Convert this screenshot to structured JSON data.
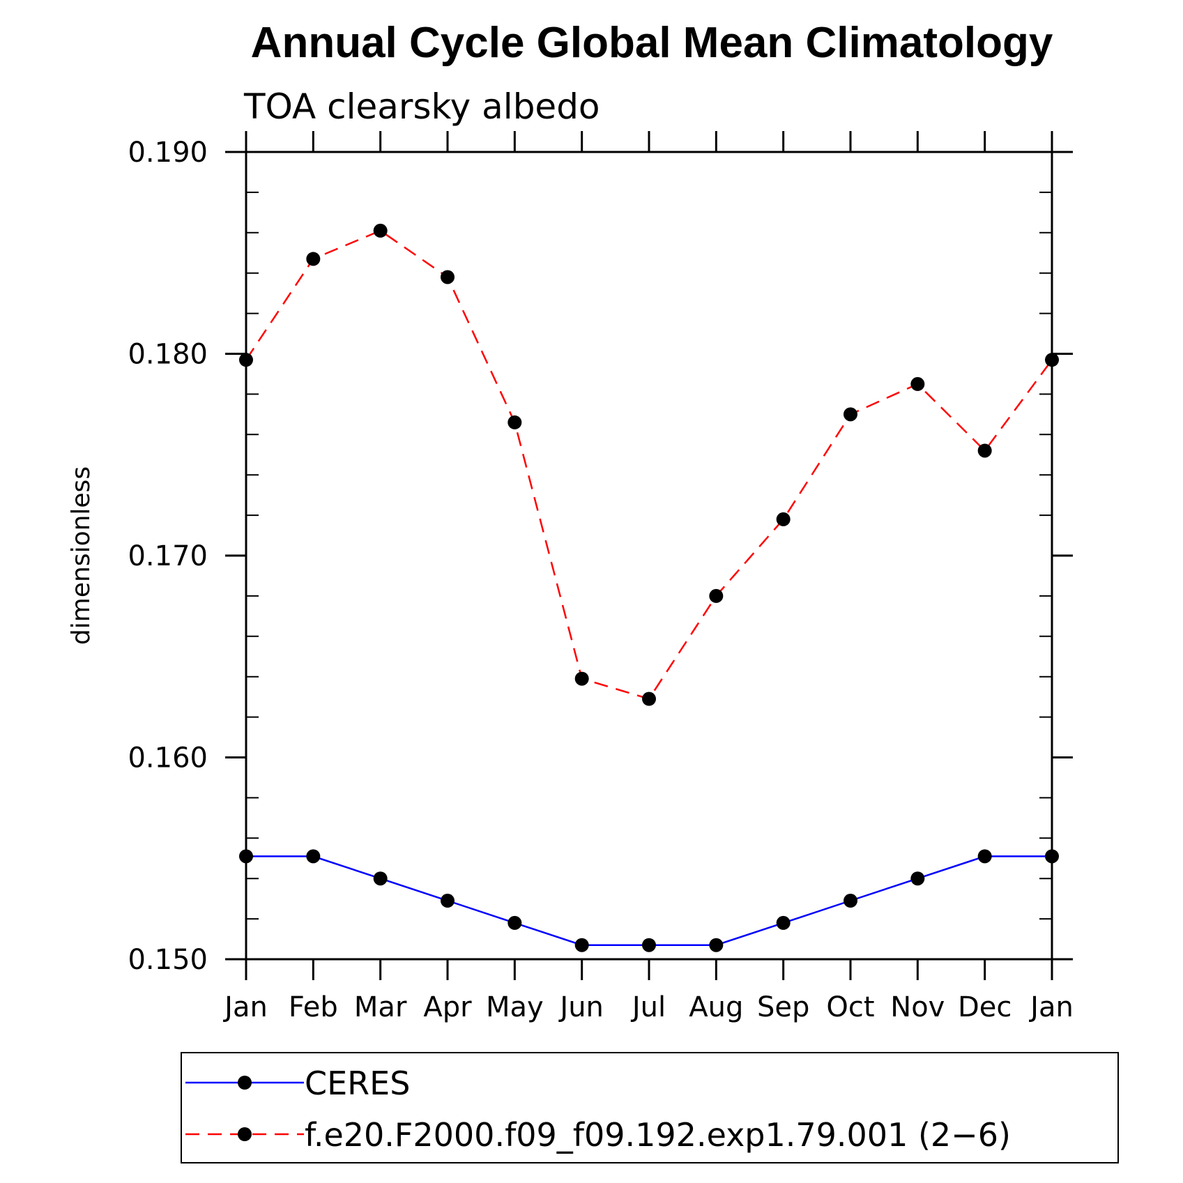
{
  "chart_data": {
    "type": "line",
    "title": "Annual Cycle Global Mean Climatology",
    "subtitle": "TOA clearsky albedo",
    "ylabel": "dimensionless",
    "xlabel": "",
    "categories": [
      "Jan",
      "Feb",
      "Mar",
      "Apr",
      "May",
      "Jun",
      "Jul",
      "Aug",
      "Sep",
      "Oct",
      "Nov",
      "Dec",
      "Jan"
    ],
    "ylim": [
      0.15,
      0.19
    ],
    "yticks": [
      0.15,
      0.16,
      0.17,
      0.18,
      0.19
    ],
    "ytick_labels": [
      "0.150",
      "0.160",
      "0.170",
      "0.180",
      "0.190"
    ],
    "series": [
      {
        "name": "CERES",
        "color": "#0000ff",
        "dash": "solid",
        "values": [
          0.1551,
          0.1551,
          0.154,
          0.1529,
          0.1518,
          0.1507,
          0.1507,
          0.1507,
          0.1518,
          0.1529,
          0.154,
          0.1551,
          0.1551
        ]
      },
      {
        "name": "f.e20.F2000.f09_f09.192.exp1.79.001 (2−6)",
        "color": "#ff0000",
        "dash": "dashed",
        "values": [
          0.1797,
          0.1847,
          0.1861,
          0.1838,
          0.1766,
          0.1639,
          0.1629,
          0.168,
          0.1718,
          0.177,
          0.1785,
          0.1752,
          0.1797
        ]
      }
    ],
    "marker_color": "#000000",
    "legend_position": "bottom"
  }
}
